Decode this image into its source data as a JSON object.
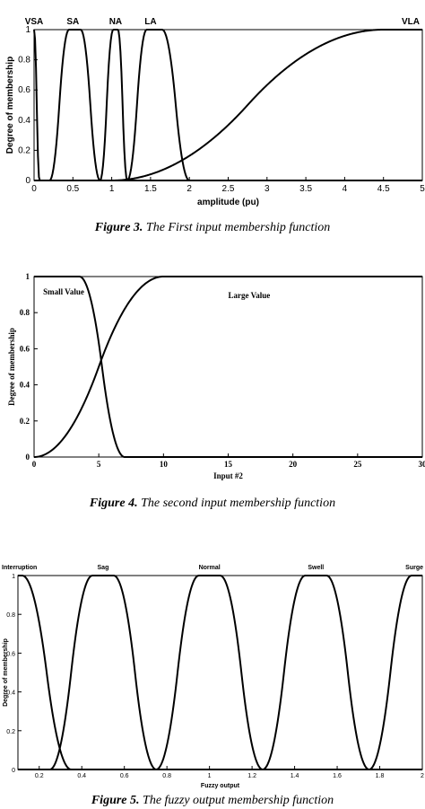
{
  "captions": [
    {
      "label": "Figure 3.",
      "text": " The First input membership function"
    },
    {
      "label": "Figure 4.",
      "text": " The second input membership function"
    },
    {
      "label": "Figure 5.",
      "text": " The fuzzy output membership function"
    }
  ],
  "chart_data": [
    {
      "type": "line",
      "title": "",
      "xlabel": "amplitude (pu)",
      "ylabel": "Degree of membership",
      "xlim": [
        0,
        5
      ],
      "ylim": [
        0,
        1
      ],
      "xticks": [
        "0",
        "0.5",
        "1",
        "1.5",
        "2",
        "2.5",
        "3",
        "3.5",
        "4",
        "4.5",
        "5"
      ],
      "yticks": [
        "0",
        "0.2",
        "0.4",
        "0.6",
        "0.8",
        "1"
      ],
      "grid": false,
      "series": [
        {
          "name": "VSA",
          "shape": "z",
          "params": [
            0.0,
            0.07
          ],
          "label_x": 0.0
        },
        {
          "name": "SA",
          "shape": "pi",
          "params": [
            0.2,
            0.45,
            0.6,
            0.85
          ],
          "label_x": 0.5
        },
        {
          "name": "NA",
          "shape": "pi",
          "params": [
            0.85,
            1.02,
            1.08,
            1.2
          ],
          "label_x": 1.05
        },
        {
          "name": "LA",
          "shape": "pi",
          "params": [
            1.2,
            1.45,
            1.65,
            2.0
          ],
          "label_x": 1.5
        },
        {
          "name": "VLA",
          "shape": "s",
          "params": [
            1.0,
            4.5
          ],
          "label_x": 4.85
        }
      ]
    },
    {
      "type": "line",
      "title": "",
      "xlabel": "Input #2",
      "ylabel": "Degree of membership",
      "xlim": [
        0,
        30
      ],
      "ylim": [
        0,
        1
      ],
      "xticks": [
        "0",
        "5",
        "10",
        "15",
        "20",
        "25",
        "30"
      ],
      "yticks": [
        "0",
        "0.2",
        "0.4",
        "0.6",
        "0.8",
        "1"
      ],
      "grid": false,
      "series": [
        {
          "name": "Small Value",
          "shape": "z",
          "params": [
            3.5,
            7.0
          ],
          "label_x": 0.7,
          "label_y": 0.9
        },
        {
          "name": "Large Value",
          "shape": "s",
          "params": [
            0.0,
            10.0
          ],
          "label_x": 15.0,
          "label_y": 0.88
        }
      ]
    },
    {
      "type": "line",
      "title": "",
      "xlabel": "Fuzzy output",
      "ylabel": "Degree of membership",
      "xlim": [
        0.1,
        2
      ],
      "ylim": [
        0,
        1
      ],
      "xticks": [
        "0.2",
        "0.4",
        "0.6",
        "0.8",
        "1",
        "1.2",
        "1.4",
        "1.6",
        "1.8",
        "2"
      ],
      "yticks": [
        "0",
        "0.2",
        "0.4",
        "0.6",
        "0.8",
        "1"
      ],
      "grid": false,
      "series": [
        {
          "name": "Interruption",
          "shape": "z",
          "params": [
            0.12,
            0.35
          ],
          "label_x": 0.1
        },
        {
          "name": "Sag",
          "shape": "pi",
          "params": [
            0.25,
            0.45,
            0.55,
            0.75
          ],
          "label_x": 0.5
        },
        {
          "name": "Normal",
          "shape": "pi",
          "params": [
            0.75,
            0.95,
            1.05,
            1.25
          ],
          "label_x": 1.0
        },
        {
          "name": "Swell",
          "shape": "pi",
          "params": [
            1.25,
            1.45,
            1.55,
            1.75
          ],
          "label_x": 1.5
        },
        {
          "name": "Surge",
          "shape": "s",
          "params": [
            1.75,
            1.95
          ],
          "label_x": 1.97
        }
      ]
    }
  ]
}
